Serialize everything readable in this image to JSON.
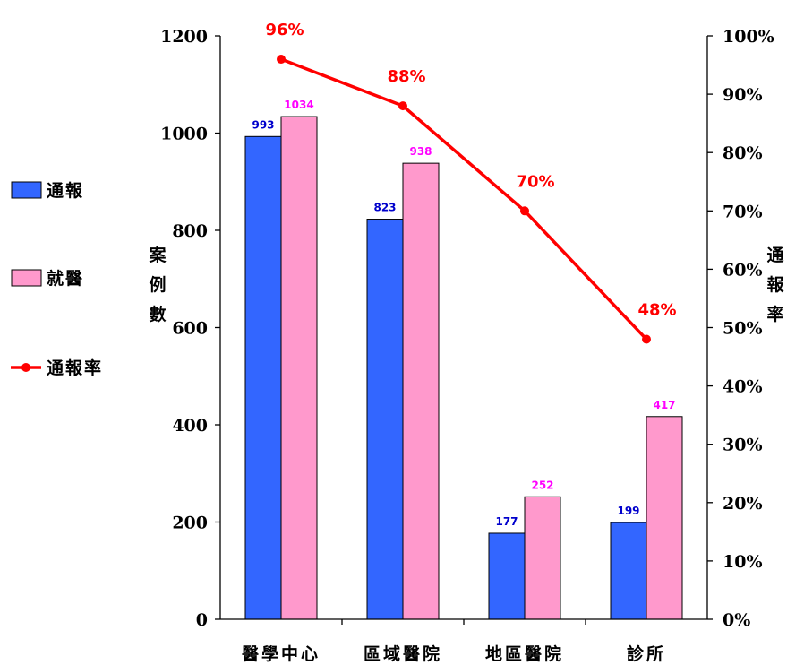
{
  "chart_data": {
    "type": "bar",
    "categories": [
      "醫學中心",
      "區域醫院",
      "地區醫院",
      "診所"
    ],
    "series": [
      {
        "name": "通報",
        "type": "bar",
        "axis": "left",
        "values": [
          993,
          823,
          177,
          199
        ],
        "color": "#3366ff",
        "label_color": "#0000cc"
      },
      {
        "name": "就醫",
        "type": "bar",
        "axis": "left",
        "values": [
          1034,
          938,
          252,
          417
        ],
        "color": "#ff99cc",
        "label_color": "#ff00ff"
      },
      {
        "name": "通報率",
        "type": "line",
        "axis": "right",
        "values": [
          96,
          88,
          70,
          48
        ],
        "value_labels": [
          "96%",
          "88%",
          "70%",
          "48%"
        ],
        "color": "#ff0000"
      }
    ],
    "left_axis": {
      "label": "案例數",
      "ylim": [
        0,
        1200
      ],
      "ticks": [
        "0",
        "200",
        "400",
        "600",
        "800",
        "1000",
        "1200"
      ]
    },
    "right_axis": {
      "label": "通報率",
      "ylim": [
        0,
        100
      ],
      "ticks": [
        "0%",
        "10%",
        "20%",
        "30%",
        "40%",
        "50%",
        "60%",
        "70%",
        "80%",
        "90%",
        "100%"
      ]
    },
    "legend_position": "left",
    "grid": false
  }
}
